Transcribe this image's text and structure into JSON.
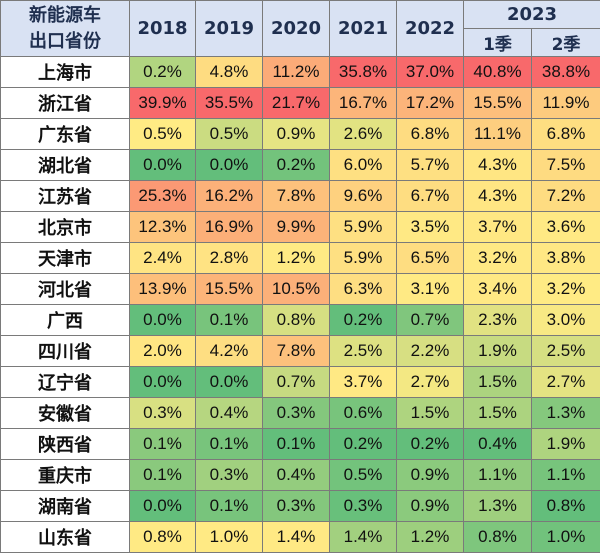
{
  "chart_data": {
    "type": "heatmap",
    "corner_label": [
      "新能源车",
      "出口省份"
    ],
    "group_header": "2023",
    "columns": [
      "2018",
      "2019",
      "2020",
      "2021",
      "2022",
      "1季",
      "2季"
    ],
    "rows": [
      {
        "name": "上海市",
        "values": [
          "0.2%",
          "4.8%",
          "11.2%",
          "35.8%",
          "37.0%",
          "40.8%",
          "38.8%"
        ]
      },
      {
        "name": "浙江省",
        "values": [
          "39.9%",
          "35.5%",
          "21.7%",
          "16.7%",
          "17.2%",
          "15.5%",
          "11.9%"
        ]
      },
      {
        "name": "广东省",
        "values": [
          "0.5%",
          "0.5%",
          "0.9%",
          "2.6%",
          "6.8%",
          "11.1%",
          "6.8%"
        ]
      },
      {
        "name": "湖北省",
        "values": [
          "0.0%",
          "0.0%",
          "0.2%",
          "6.0%",
          "5.7%",
          "4.3%",
          "7.5%"
        ]
      },
      {
        "name": "江苏省",
        "values": [
          "25.3%",
          "16.2%",
          "7.8%",
          "9.6%",
          "6.7%",
          "4.3%",
          "7.2%"
        ]
      },
      {
        "name": "北京市",
        "values": [
          "12.3%",
          "16.9%",
          "9.9%",
          "5.9%",
          "3.5%",
          "3.7%",
          "3.6%"
        ]
      },
      {
        "name": "天津市",
        "values": [
          "2.4%",
          "2.8%",
          "1.2%",
          "5.9%",
          "6.5%",
          "3.2%",
          "3.8%"
        ]
      },
      {
        "name": "河北省",
        "values": [
          "13.9%",
          "15.5%",
          "10.5%",
          "6.3%",
          "3.1%",
          "3.4%",
          "3.2%"
        ]
      },
      {
        "name": "广西",
        "values": [
          "0.0%",
          "0.1%",
          "0.8%",
          "0.2%",
          "0.7%",
          "2.3%",
          "3.0%"
        ]
      },
      {
        "name": "四川省",
        "values": [
          "2.0%",
          "4.2%",
          "7.8%",
          "2.5%",
          "2.2%",
          "1.9%",
          "2.5%"
        ]
      },
      {
        "name": "辽宁省",
        "values": [
          "0.0%",
          "0.0%",
          "0.7%",
          "3.7%",
          "2.7%",
          "1.5%",
          "2.7%"
        ]
      },
      {
        "name": "安徽省",
        "values": [
          "0.3%",
          "0.4%",
          "0.3%",
          "0.6%",
          "1.5%",
          "1.5%",
          "1.3%"
        ]
      },
      {
        "name": "陕西省",
        "values": [
          "0.1%",
          "0.1%",
          "0.1%",
          "0.2%",
          "0.2%",
          "0.4%",
          "1.9%"
        ]
      },
      {
        "name": "重庆市",
        "values": [
          "0.1%",
          "0.3%",
          "0.4%",
          "0.5%",
          "0.9%",
          "1.1%",
          "1.1%"
        ]
      },
      {
        "name": "湖南省",
        "values": [
          "0.0%",
          "0.1%",
          "0.3%",
          "0.3%",
          "0.9%",
          "1.3%",
          "0.8%"
        ]
      },
      {
        "name": "山东省",
        "values": [
          "0.8%",
          "1.0%",
          "1.4%",
          "1.4%",
          "1.2%",
          "0.8%",
          "1.0%"
        ]
      }
    ],
    "color_scale": {
      "low": "#63be7b",
      "mid": "#ffeb84",
      "high": "#f8696b",
      "scaled_per": "column"
    }
  }
}
